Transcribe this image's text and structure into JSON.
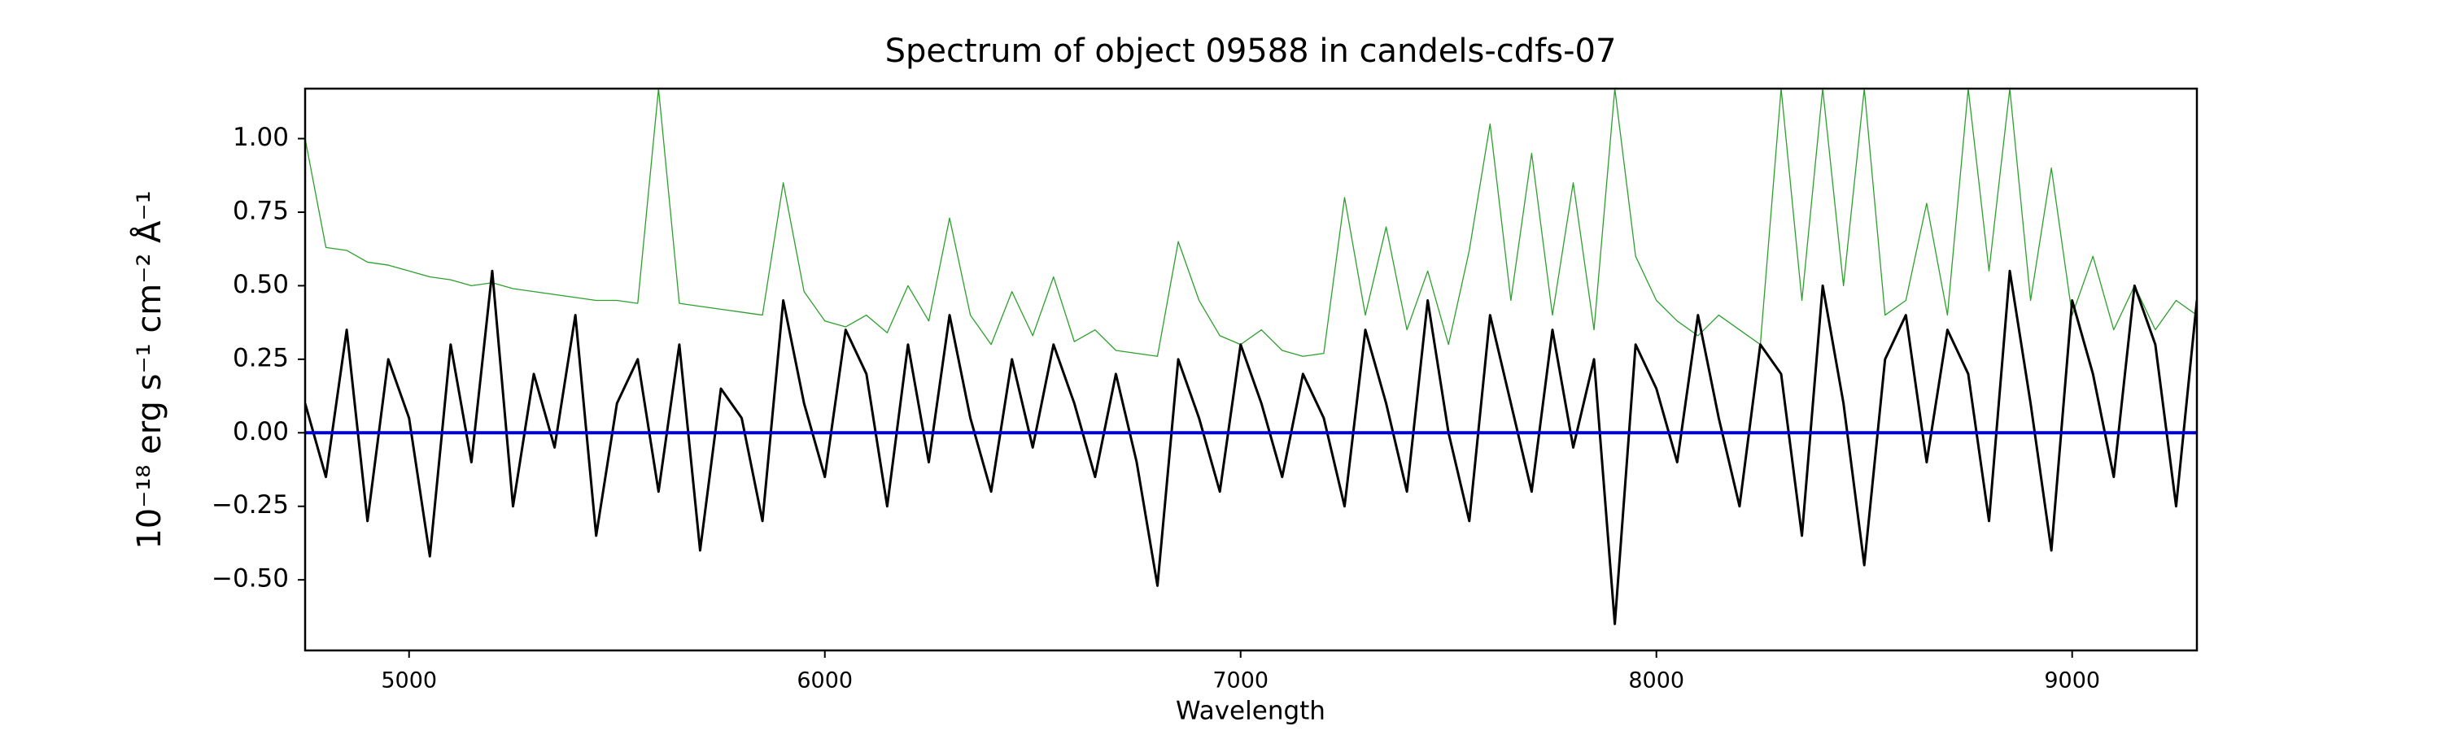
{
  "chart_data": {
    "type": "line",
    "title": "Spectrum of object 09588 in candels-cdfs-07",
    "xlabel": "Wavelength",
    "ylabel": "10⁻¹⁸ erg s⁻¹ cm⁻² Å⁻¹",
    "xlim": [
      4750,
      9300
    ],
    "ylim": [
      -0.74,
      1.17
    ],
    "xticks": [
      5000,
      6000,
      7000,
      8000,
      9000
    ],
    "yticks": [
      {
        "value": -0.5,
        "label": "−0.50"
      },
      {
        "value": -0.25,
        "label": "−0.25"
      },
      {
        "value": 0,
        "label": "0.00"
      },
      {
        "value": 0.25,
        "label": "0.25"
      },
      {
        "value": 0.5,
        "label": "0.50"
      },
      {
        "value": 0.75,
        "label": "0.75"
      },
      {
        "value": 1,
        "label": "1.00"
      }
    ],
    "x": [
      4750,
      4800,
      4850,
      4900,
      4950,
      5000,
      5050,
      5100,
      5150,
      5200,
      5250,
      5300,
      5350,
      5400,
      5450,
      5500,
      5550,
      5600,
      5650,
      5700,
      5750,
      5800,
      5850,
      5900,
      5950,
      6000,
      6050,
      6100,
      6150,
      6200,
      6250,
      6300,
      6350,
      6400,
      6450,
      6500,
      6550,
      6600,
      6650,
      6700,
      6750,
      6800,
      6850,
      6900,
      6950,
      7000,
      7050,
      7100,
      7150,
      7200,
      7250,
      7300,
      7350,
      7400,
      7450,
      7500,
      7550,
      7600,
      7650,
      7700,
      7750,
      7800,
      7850,
      7900,
      7950,
      8000,
      8050,
      8100,
      8150,
      8200,
      8250,
      8300,
      8350,
      8400,
      8450,
      8500,
      8550,
      8600,
      8650,
      8700,
      8750,
      8800,
      8850,
      8900,
      8950,
      9000,
      9050,
      9100,
      9150,
      9200,
      9250,
      9300
    ],
    "series": [
      {
        "color": "#2ca02c",
        "width": 1.3,
        "values": [
          1.0,
          0.63,
          0.62,
          0.58,
          0.57,
          0.55,
          0.53,
          0.52,
          0.5,
          0.51,
          0.49,
          0.48,
          0.47,
          0.46,
          0.45,
          0.45,
          0.44,
          1.17,
          0.44,
          0.43,
          0.42,
          0.41,
          0.4,
          0.85,
          0.48,
          0.38,
          0.36,
          0.4,
          0.34,
          0.5,
          0.38,
          0.73,
          0.4,
          0.3,
          0.48,
          0.33,
          0.53,
          0.31,
          0.35,
          0.28,
          0.27,
          0.26,
          0.65,
          0.45,
          0.33,
          0.3,
          0.35,
          0.28,
          0.26,
          0.27,
          0.8,
          0.4,
          0.7,
          0.35,
          0.55,
          0.3,
          0.62,
          1.05,
          0.45,
          0.95,
          0.4,
          0.85,
          0.35,
          1.17,
          0.6,
          0.45,
          0.38,
          0.33,
          0.4,
          0.35,
          0.3,
          1.17,
          0.45,
          1.17,
          0.5,
          1.17,
          0.4,
          0.45,
          0.78,
          0.4,
          1.17,
          0.55,
          1.17,
          0.45,
          0.9,
          0.4,
          0.6,
          0.35,
          0.5,
          0.35,
          0.45,
          0.4
        ]
      },
      {
        "color": "#000000",
        "width": 3,
        "values": [
          0.1,
          -0.15,
          0.35,
          -0.3,
          0.25,
          0.05,
          -0.42,
          0.3,
          -0.1,
          0.55,
          -0.25,
          0.2,
          -0.05,
          0.4,
          -0.35,
          0.1,
          0.25,
          -0.2,
          0.3,
          -0.4,
          0.15,
          0.05,
          -0.3,
          0.45,
          0.1,
          -0.15,
          0.35,
          0.2,
          -0.25,
          0.3,
          -0.1,
          0.4,
          0.05,
          -0.2,
          0.25,
          -0.05,
          0.3,
          0.1,
          -0.15,
          0.2,
          -0.1,
          -0.52,
          0.25,
          0.05,
          -0.2,
          0.3,
          0.1,
          -0.15,
          0.2,
          0.05,
          -0.25,
          0.35,
          0.1,
          -0.2,
          0.45,
          0.0,
          -0.3,
          0.4,
          0.1,
          -0.2,
          0.35,
          -0.05,
          0.25,
          -0.65,
          0.3,
          0.15,
          -0.1,
          0.4,
          0.05,
          -0.25,
          0.3,
          0.2,
          -0.35,
          0.5,
          0.1,
          -0.45,
          0.25,
          0.4,
          -0.1,
          0.35,
          0.2,
          -0.3,
          0.55,
          0.1,
          -0.4,
          0.45,
          0.2,
          -0.15,
          0.5,
          0.3,
          -0.25,
          0.45
        ]
      },
      {
        "color": "#0000cc",
        "width": 4,
        "x": [
          4750,
          9300
        ],
        "values": [
          0,
          0
        ]
      }
    ]
  }
}
